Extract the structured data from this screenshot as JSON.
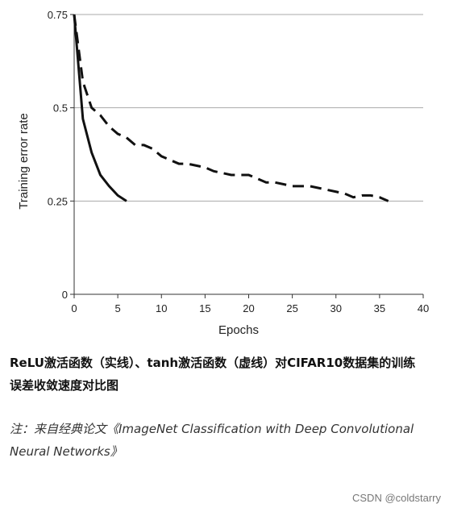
{
  "chart_data": {
    "type": "line",
    "x_label": "Epochs",
    "y_label": "Training error rate",
    "x": [
      0,
      1,
      2,
      3,
      4,
      5,
      6,
      7,
      8,
      9,
      10,
      11,
      12,
      13,
      14,
      15,
      16,
      17,
      18,
      19,
      20,
      21,
      22,
      23,
      24,
      25,
      26,
      27,
      28,
      29,
      30,
      31,
      32,
      33,
      34,
      35,
      36
    ],
    "series": [
      {
        "name": "ReLU",
        "color": "#111111",
        "dash": false,
        "values": [
          0.75,
          0.47,
          0.38,
          0.32,
          0.29,
          0.265,
          0.25,
          null,
          null,
          null,
          null,
          null,
          null,
          null,
          null,
          null,
          null,
          null,
          null,
          null,
          null,
          null,
          null,
          null,
          null,
          null,
          null,
          null,
          null,
          null,
          null,
          null,
          null,
          null,
          null,
          null,
          null
        ]
      },
      {
        "name": "tanh",
        "color": "#111111",
        "dash": true,
        "values": [
          0.75,
          0.57,
          0.5,
          0.48,
          0.45,
          0.43,
          0.42,
          0.4,
          0.4,
          0.39,
          0.37,
          0.36,
          0.35,
          0.35,
          0.345,
          0.34,
          0.33,
          0.325,
          0.32,
          0.32,
          0.32,
          0.31,
          0.3,
          0.3,
          0.295,
          0.29,
          0.29,
          0.29,
          0.285,
          0.28,
          0.275,
          0.27,
          0.26,
          0.265,
          0.265,
          0.26,
          0.25
        ]
      }
    ],
    "xlim": [
      0,
      40
    ],
    "xticks": [
      0,
      5,
      10,
      15,
      20,
      25,
      30,
      35,
      40
    ],
    "ylim": [
      0,
      0.75
    ],
    "yticks": [
      0,
      0.25,
      0.5,
      0.75
    ],
    "grid": true
  },
  "caption": {
    "lines": [
      "ReLU激活函数（实线）、tanh激活函数（虚线）对CIFAR10数据集的训练",
      "误差收敛速度对比图"
    ]
  },
  "note": {
    "lines": [
      "注：来自经典论文《ImageNet Classification with Deep Convolutional",
      "Neural Networks》"
    ]
  },
  "watermark": "CSDN @coldstarry"
}
